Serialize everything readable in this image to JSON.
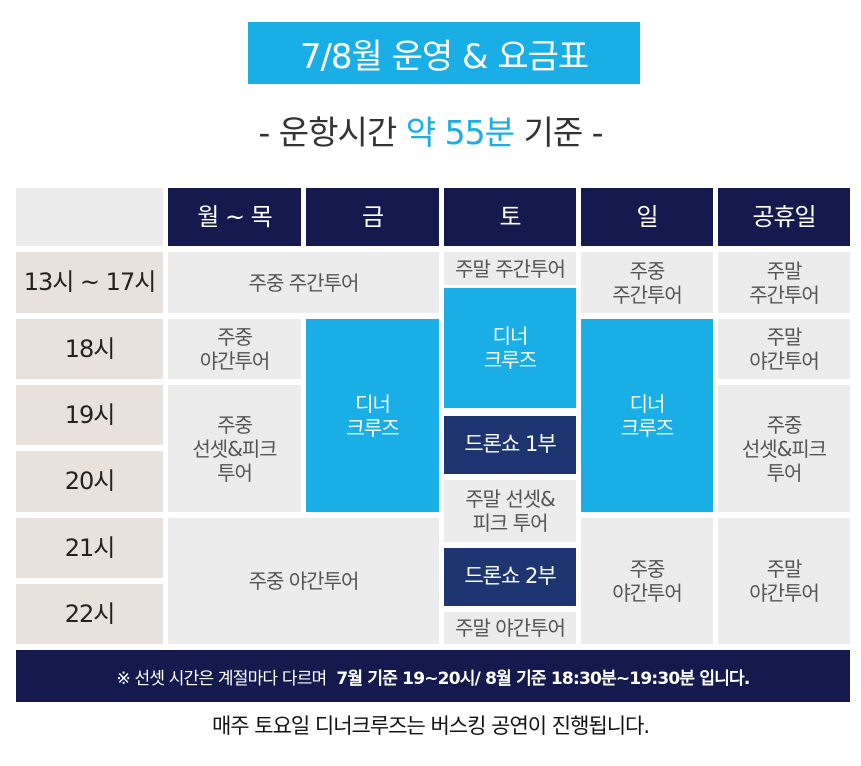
{
  "title": "7/8월 운영 & 요금표",
  "subtitle": {
    "prefix": "- 운항시간",
    "highlight": "약 55분",
    "suffix": "기준 -"
  },
  "table": {
    "headers": [
      "월 ~ 목",
      "금",
      "토",
      "일",
      "공휴일"
    ],
    "times": [
      "13시 ~ 17시",
      "18시",
      "19시",
      "20시",
      "21시",
      "22시"
    ],
    "cells": {
      "weekday_day_tour": "주중 주간투어",
      "weekday_night_tour_18": "주중\n야간투어",
      "weekday_sunset_picnic": "주중\n선셋&피크\n투어",
      "weekday_night_tour_21": "주중 야간투어",
      "fri_dinner": "디너\n크루즈",
      "sat_weekend_day_tour": "주말 주간투어",
      "sat_dinner": "디너\n크루즈",
      "sat_drone_1": "드론쇼 1부",
      "sat_sunset_picnic": "주말 선셋&\n피크 투어",
      "sat_drone_2": "드론쇼 2부",
      "sat_night_tour": "주말 야간투어",
      "sun_weekday_day_tour": "주중\n주간투어",
      "sun_dinner": "디너\n크루즈",
      "sun_night_tour": "주중\n야간투어",
      "hol_day_tour": "주말\n주간투어",
      "hol_night_tour_18": "주말\n야간투어",
      "hol_sunset_picnic": "주중\n선셋&피크\n투어",
      "hol_night_tour_21": "주말\n야간투어"
    }
  },
  "notice": {
    "normal": "※ 선셋 시간은 계절마다 다르며",
    "bold": "7월 기준 19~20시/ 8월 기준 18:30분~19:30분 입니다."
  },
  "footer": "매주 토요일 디너크루즈는 버스킹 공연이 진행됩니다.",
  "colors": {
    "accent_blue": "#1aaee6",
    "header_navy": "#141a4d",
    "drone_navy": "#1d3570",
    "time_beige": "#e9e1db",
    "cell_gray": "#ececec"
  }
}
